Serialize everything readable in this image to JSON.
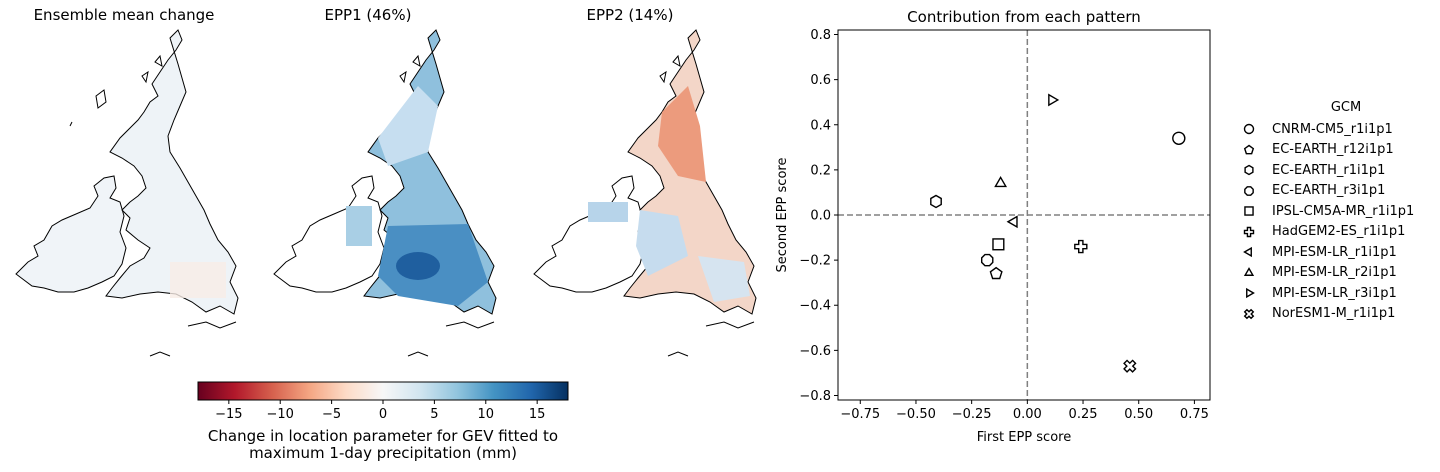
{
  "maps": [
    {
      "title": "Ensemble mean change"
    },
    {
      "title": "EPP1 (46%)"
    },
    {
      "title": "EPP2 (14%)"
    }
  ],
  "colorbar": {
    "ticks": [
      "−15",
      "−10",
      "−5",
      "0",
      "5",
      "10",
      "15"
    ],
    "tick_values": [
      -15,
      -10,
      -5,
      0,
      5,
      10,
      15
    ],
    "range": [
      -18,
      18
    ],
    "label_line1": "Change in location parameter for GEV fitted to",
    "label_line2": "maximum 1-day precipitation (mm)",
    "colormap": "RdBu"
  },
  "chart_data": {
    "type": "scatter",
    "title": "Contribution from each pattern",
    "xlabel": "First EPP score",
    "ylabel": "Second EPP score",
    "xlim": [
      -0.85,
      0.82
    ],
    "ylim": [
      -0.82,
      0.82
    ],
    "xticks": [
      -0.75,
      -0.5,
      -0.25,
      0.0,
      0.25,
      0.5,
      0.75
    ],
    "xtick_labels": [
      "−0.75",
      "−0.50",
      "−0.25",
      "0.00",
      "0.25",
      "0.50",
      "0.75"
    ],
    "yticks": [
      -0.8,
      -0.6,
      -0.4,
      -0.2,
      0.0,
      0.2,
      0.4,
      0.6,
      0.8
    ],
    "ytick_labels": [
      "−0.8",
      "−0.6",
      "−0.4",
      "−0.2",
      "0.0",
      "0.2",
      "0.4",
      "0.6",
      "0.8"
    ],
    "reference_lines": {
      "x": 0.0,
      "y": 0.0,
      "style": "dashed",
      "color": "#808080"
    },
    "grid": false,
    "legend_title": "GCM",
    "legend_position": "right",
    "points": [
      {
        "name": "CNRM-CM5_r1i1p1",
        "marker": "circle",
        "x": 0.68,
        "y": 0.34
      },
      {
        "name": "EC-EARTH_r12i1p1",
        "marker": "pentagon",
        "x": -0.14,
        "y": -0.26
      },
      {
        "name": "EC-EARTH_r1i1p1",
        "marker": "hexagon",
        "x": -0.41,
        "y": 0.06
      },
      {
        "name": "EC-EARTH_r3i1p1",
        "marker": "octagon",
        "x": -0.18,
        "y": -0.2
      },
      {
        "name": "IPSL-CM5A-MR_r1i1p1",
        "marker": "square",
        "x": -0.13,
        "y": -0.13
      },
      {
        "name": "HadGEM2-ES_r1i1p1",
        "marker": "plus",
        "x": 0.24,
        "y": -0.14
      },
      {
        "name": "MPI-ESM-LR_r1i1p1",
        "marker": "triangle-left",
        "x": -0.06,
        "y": -0.03
      },
      {
        "name": "MPI-ESM-LR_r2i1p1",
        "marker": "triangle-up",
        "x": -0.12,
        "y": 0.14
      },
      {
        "name": "MPI-ESM-LR_r3i1p1",
        "marker": "triangle-right",
        "x": 0.11,
        "y": 0.51
      },
      {
        "name": "NorESM1-M_r1i1p1",
        "marker": "x-filled",
        "x": 0.46,
        "y": -0.67
      }
    ]
  }
}
